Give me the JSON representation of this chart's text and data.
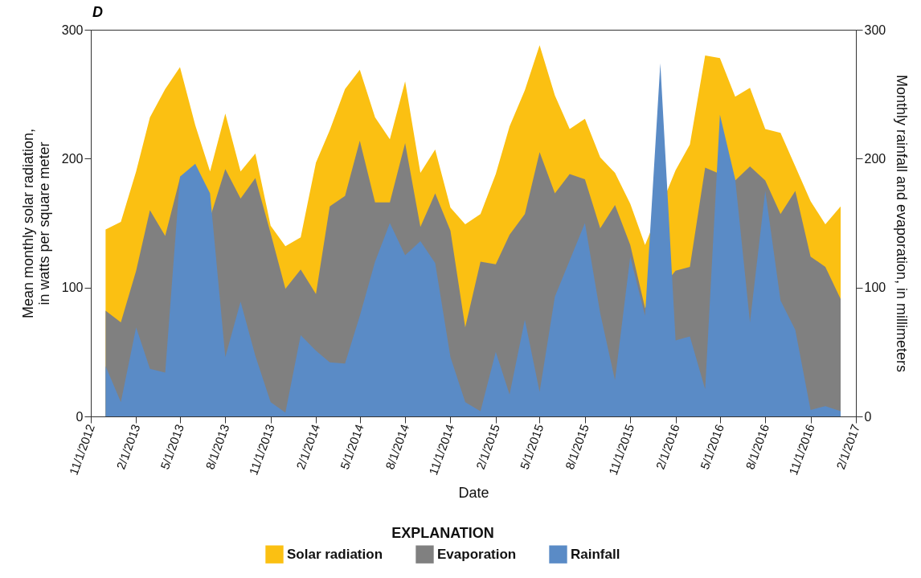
{
  "chart_data": {
    "type": "area",
    "title": "D",
    "xlabel": "Date",
    "ylabel": "Mean monthly solar radiation, in watts per square meter",
    "y2label": "Monthly rainfall and evaporation, in millimeters",
    "legend_title": "EXPLANATION",
    "legend": "bottom",
    "x": [
      "2012-12",
      "2013-01",
      "2013-02",
      "2013-03",
      "2013-04",
      "2013-05",
      "2013-06",
      "2013-07",
      "2013-08",
      "2013-09",
      "2013-10",
      "2013-11",
      "2013-12",
      "2014-01",
      "2014-02",
      "2014-03",
      "2014-04",
      "2014-05",
      "2014-06",
      "2014-07",
      "2014-08",
      "2014-09",
      "2014-10",
      "2014-11",
      "2014-12",
      "2015-01",
      "2015-02",
      "2015-03",
      "2015-04",
      "2015-05",
      "2015-06",
      "2015-07",
      "2015-08",
      "2015-09",
      "2015-10",
      "2015-11",
      "2015-12",
      "2016-01",
      "2016-02",
      "2016-03",
      "2016-04",
      "2016-05",
      "2016-06",
      "2016-07",
      "2016-08",
      "2016-09",
      "2016-10",
      "2016-11",
      "2016-12",
      "2017-01"
    ],
    "series": [
      {
        "name": "Solar radiation",
        "color": "#fbc012",
        "axis": "y",
        "values": [
          145,
          151,
          190,
          232,
          254,
          271,
          226,
          190,
          235,
          190,
          204,
          148,
          132,
          139,
          197,
          222,
          254,
          269,
          232,
          215,
          260,
          189,
          207,
          162,
          149,
          157,
          188,
          225,
          253,
          288,
          249,
          223,
          231,
          201,
          189,
          165,
          133,
          null,
          191,
          211,
          280,
          278,
          248,
          255,
          223,
          220,
          194,
          167,
          149,
          163
        ]
      },
      {
        "name": "Evaporation",
        "color": "#808080",
        "axis": "y2",
        "values": [
          82,
          73,
          113,
          160,
          140,
          185,
          null,
          154,
          192,
          169,
          185,
          142,
          99,
          114,
          95,
          163,
          171,
          214,
          166,
          166,
          212,
          147,
          173,
          144,
          69,
          120,
          118,
          141,
          157,
          205,
          173,
          188,
          184,
          146,
          164,
          133,
          84,
          null,
          113,
          116,
          193,
          null,
          183,
          194,
          183,
          157,
          175,
          124,
          116,
          91
        ]
      },
      {
        "name": "Rainfall",
        "color": "#5a8bc6",
        "axis": "y2",
        "values": [
          39,
          11,
          69,
          37,
          34,
          186,
          196,
          173,
          46,
          89,
          47,
          11,
          3,
          63,
          51,
          42,
          41,
          78,
          120,
          150,
          125,
          136,
          119,
          46,
          11,
          4,
          50,
          17,
          75,
          19,
          93,
          121,
          150,
          80,
          28,
          124,
          78,
          274,
          59,
          62,
          21,
          234,
          184,
          73,
          175,
          90,
          67,
          5,
          8,
          4
        ]
      }
    ],
    "xlim": [
      "2012-11-01",
      "2017-02-01"
    ],
    "xticks": [
      {
        "value": "2012-11-01",
        "label": "11/1/2012"
      },
      {
        "value": "2013-02-01",
        "label": "2/1/2013"
      },
      {
        "value": "2013-05-01",
        "label": "5/1/2013"
      },
      {
        "value": "2013-08-01",
        "label": "8/1/2013"
      },
      {
        "value": "2013-11-01",
        "label": "11/1/2013"
      },
      {
        "value": "2014-02-01",
        "label": "2/1/2014"
      },
      {
        "value": "2014-05-01",
        "label": "5/1/2014"
      },
      {
        "value": "2014-08-01",
        "label": "8/1/2014"
      },
      {
        "value": "2014-11-01",
        "label": "11/1/2014"
      },
      {
        "value": "2015-02-01",
        "label": "2/1/2015"
      },
      {
        "value": "2015-05-01",
        "label": "5/1/2015"
      },
      {
        "value": "2015-08-01",
        "label": "8/1/2015"
      },
      {
        "value": "2015-11-01",
        "label": "11/1/2015"
      },
      {
        "value": "2016-02-01",
        "label": "2/1/2016"
      },
      {
        "value": "2016-05-01",
        "label": "5/1/2016"
      },
      {
        "value": "2016-08-01",
        "label": "8/1/2016"
      },
      {
        "value": "2016-11-01",
        "label": "11/1/2016"
      },
      {
        "value": "2017-02-01",
        "label": "2/1/2017"
      }
    ],
    "ylim": [
      0,
      300
    ],
    "yticks": [
      0,
      100,
      200,
      300
    ],
    "y2lim": [
      0,
      300
    ],
    "y2ticks": [
      0,
      100,
      200,
      300
    ]
  }
}
